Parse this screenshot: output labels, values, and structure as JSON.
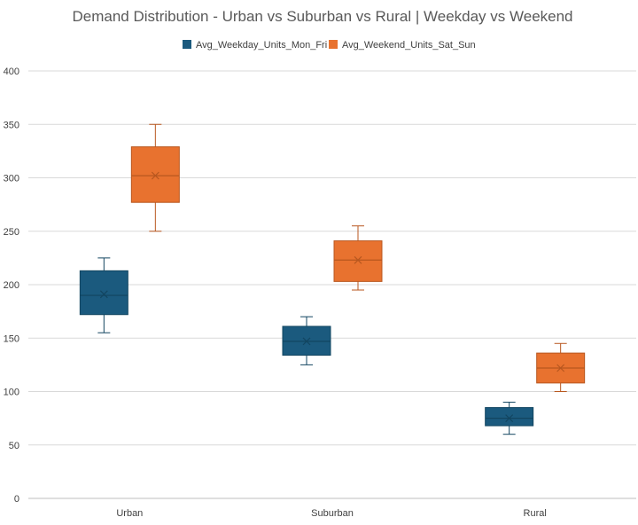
{
  "chart_data": {
    "type": "box",
    "title": "Demand Distribution - Urban vs Suburban vs Rural | Weekday vs Weekend",
    "xlabel": "",
    "ylabel": "",
    "ylim": [
      0,
      400
    ],
    "yticks": [
      0,
      50,
      100,
      150,
      200,
      250,
      300,
      350,
      400
    ],
    "grid": true,
    "legend_position": "top",
    "categories": [
      "Urban",
      "Suburban",
      "Rural"
    ],
    "series": [
      {
        "name": "Avg_Weekday_Units_Mon_Fri",
        "color": "#1b5a7e",
        "stroke": "#124560",
        "boxes": [
          {
            "min": 155,
            "q1": 172,
            "median": 190,
            "q3": 213,
            "max": 225,
            "mean": 191
          },
          {
            "min": 125,
            "q1": 134,
            "median": 147,
            "q3": 161,
            "max": 170,
            "mean": 147
          },
          {
            "min": 60,
            "q1": 68,
            "median": 75,
            "q3": 85,
            "max": 90,
            "mean": 75
          }
        ]
      },
      {
        "name": "Avg_Weekend_Units_Sat_Sun",
        "color": "#e8722f",
        "stroke": "#b8571f",
        "boxes": [
          {
            "min": 250,
            "q1": 277,
            "median": 302,
            "q3": 329,
            "max": 350,
            "mean": 302
          },
          {
            "min": 195,
            "q1": 203,
            "median": 223,
            "q3": 241,
            "max": 255,
            "mean": 223
          },
          {
            "min": 100,
            "q1": 108,
            "median": 122,
            "q3": 136,
            "max": 145,
            "mean": 122
          }
        ]
      }
    ]
  }
}
